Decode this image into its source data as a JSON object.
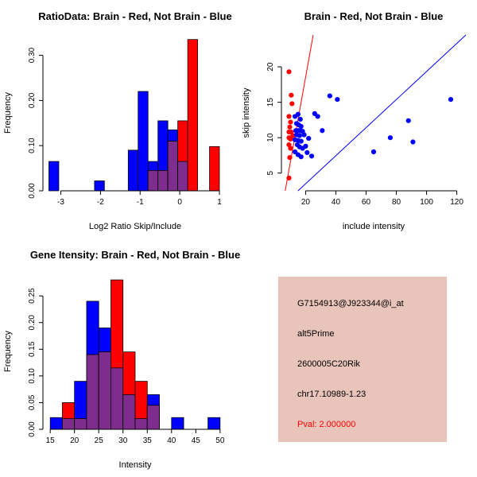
{
  "colors": {
    "red": "#FF0000",
    "blue": "#0000FF",
    "overlap": "#7E2D8E",
    "axis": "#000000"
  },
  "chart_data": [
    {
      "type": "bar",
      "kind": "histogram",
      "title": "RatioData: Brain - Red, Not Brain - Blue",
      "xlabel": "Log2 Ratio Skip/Include",
      "ylabel": "Frequency",
      "legend": {
        "brain": "Red",
        "not_brain": "Blue"
      },
      "xlim": [
        -3.45,
        1.2
      ],
      "ylim": [
        0,
        0.345
      ],
      "xticks": [
        -3,
        -2,
        -1,
        0,
        1
      ],
      "xtick_labels": [
        "-3",
        "-2",
        "-1",
        "0",
        "1"
      ],
      "yticks": [
        0,
        0.1,
        0.2,
        0.3
      ],
      "ytick_labels": [
        "0.00",
        "0.10",
        "0.20",
        "0.30"
      ],
      "bins": [
        {
          "x0": -3.3,
          "x1": -3.05,
          "not_brain": 0.065,
          "brain": 0
        },
        {
          "x0": -2.15,
          "x1": -1.9,
          "not_brain": 0.022,
          "brain": 0
        },
        {
          "x0": -1.3,
          "x1": -1.05,
          "not_brain": 0.09,
          "brain": 0
        },
        {
          "x0": -1.05,
          "x1": -0.8,
          "not_brain": 0.22,
          "brain": 0
        },
        {
          "x0": -0.8,
          "x1": -0.55,
          "not_brain": 0.065,
          "brain": 0.045
        },
        {
          "x0": -0.55,
          "x1": -0.3,
          "not_brain": 0.155,
          "brain": 0.045
        },
        {
          "x0": -0.3,
          "x1": -0.05,
          "not_brain": 0.135,
          "brain": 0.11
        },
        {
          "x0": -0.05,
          "x1": 0.2,
          "not_brain": 0.065,
          "brain": 0.155
        },
        {
          "x0": 0.2,
          "x1": 0.45,
          "not_brain": 0,
          "brain": 0.335
        },
        {
          "x0": 0.75,
          "x1": 1.0,
          "not_brain": 0,
          "brain": 0.098
        }
      ]
    },
    {
      "type": "scatter",
      "title": "Brain - Red, Not Brain - Blue",
      "xlabel": "include intensity",
      "ylabel": "skip intensity",
      "xlim": [
        4,
        126
      ],
      "ylim": [
        2.5,
        24.5
      ],
      "xticks": [
        20,
        40,
        60,
        80,
        100,
        120
      ],
      "yticks": [
        5,
        10,
        15,
        20
      ],
      "series": [
        {
          "name": "brain",
          "color": "#FF0000",
          "points": [
            [
              9,
              19.3
            ],
            [
              10.5,
              16
            ],
            [
              11,
              14.8
            ],
            [
              9,
              13
            ],
            [
              10,
              12.2
            ],
            [
              9.5,
              11.5
            ],
            [
              9,
              10.8
            ],
            [
              10.5,
              10.8
            ],
            [
              9,
              10
            ],
            [
              10,
              9.8
            ],
            [
              11.5,
              10.3
            ],
            [
              9,
              9
            ],
            [
              10,
              8.5
            ],
            [
              9.5,
              7.2
            ],
            [
              9,
              4.3
            ]
          ]
        },
        {
          "name": "not_brain",
          "color": "#0000FF",
          "points": [
            [
              13,
              13
            ],
            [
              15,
              13.3
            ],
            [
              16.5,
              12.6
            ],
            [
              14,
              12
            ],
            [
              15.5,
              11.8
            ],
            [
              17,
              11.6
            ],
            [
              13.5,
              11
            ],
            [
              15,
              11
            ],
            [
              16.5,
              11
            ],
            [
              18,
              10.9
            ],
            [
              14,
              10.4
            ],
            [
              16,
              10.3
            ],
            [
              19,
              10.4
            ],
            [
              13,
              9.7
            ],
            [
              15,
              9.6
            ],
            [
              17,
              9.5
            ],
            [
              14.5,
              9
            ],
            [
              16,
              8.7
            ],
            [
              18,
              8.5
            ],
            [
              13,
              8
            ],
            [
              15,
              7.6
            ],
            [
              17,
              7.3
            ],
            [
              20,
              8.8
            ],
            [
              22,
              9.9
            ],
            [
              21,
              7.9
            ],
            [
              24,
              7.4
            ],
            [
              26,
              13.4
            ],
            [
              28,
              13
            ],
            [
              36,
              15.9
            ],
            [
              41,
              15.4
            ],
            [
              31,
              11
            ],
            [
              65,
              8
            ],
            [
              76,
              10
            ],
            [
              88,
              12.4
            ],
            [
              91,
              9.4
            ],
            [
              116,
              15.4
            ]
          ]
        }
      ],
      "lines": [
        {
          "name": "brain-fit-line",
          "color": "#FF0000",
          "from": [
            6.5,
            2.5
          ],
          "to": [
            25,
            24.5
          ]
        },
        {
          "name": "not-brain-fit-line",
          "color": "#0000FF",
          "from": [
            15,
            2.5
          ],
          "to": [
            126,
            24.5
          ]
        }
      ]
    },
    {
      "type": "bar",
      "kind": "histogram",
      "title": "Gene Itensity: Brain - Red, Not Brain - Blue",
      "xlabel": "Intensity",
      "ylabel": "Frequency",
      "legend": {
        "brain": "Red",
        "not_brain": "Blue"
      },
      "xlim": [
        13.5,
        51.5
      ],
      "ylim": [
        0,
        0.292
      ],
      "xticks": [
        15,
        20,
        25,
        30,
        35,
        40,
        45,
        50
      ],
      "xtick_labels": [
        "15",
        "20",
        "25",
        "30",
        "35",
        "40",
        "45",
        "50"
      ],
      "yticks": [
        0,
        0.05,
        0.1,
        0.15,
        0.2,
        0.25
      ],
      "ytick_labels": [
        "0.00",
        "0.05",
        "0.10",
        "0.15",
        "0.20",
        "0.25"
      ],
      "bins": [
        {
          "x0": 15.0,
          "x1": 17.5,
          "not_brain": 0.022,
          "brain": 0
        },
        {
          "x0": 17.5,
          "x1": 20.0,
          "not_brain": 0.02,
          "brain": 0.05
        },
        {
          "x0": 20.0,
          "x1": 22.5,
          "not_brain": 0.09,
          "brain": 0.02
        },
        {
          "x0": 22.5,
          "x1": 25.0,
          "not_brain": 0.24,
          "brain": 0.14
        },
        {
          "x0": 25.0,
          "x1": 27.5,
          "not_brain": 0.19,
          "brain": 0.145
        },
        {
          "x0": 27.5,
          "x1": 30.0,
          "not_brain": 0.115,
          "brain": 0.28
        },
        {
          "x0": 30.0,
          "x1": 32.5,
          "not_brain": 0.065,
          "brain": 0.145
        },
        {
          "x0": 32.5,
          "x1": 35.0,
          "not_brain": 0.02,
          "brain": 0.09
        },
        {
          "x0": 35.0,
          "x1": 37.5,
          "not_brain": 0.065,
          "brain": 0.045
        },
        {
          "x0": 40.0,
          "x1": 42.5,
          "not_brain": 0.022,
          "brain": 0
        },
        {
          "x0": 47.5,
          "x1": 50.0,
          "not_brain": 0.022,
          "brain": 0
        }
      ]
    }
  ],
  "info_panel": {
    "background": "#E9C4BB",
    "lines": [
      {
        "label": "probe-id",
        "text": "G7154913@J923344@i_at",
        "color": "#000000"
      },
      {
        "label": "splice-type",
        "text": "alt5Prime",
        "color": "#000000"
      },
      {
        "label": "gene-name",
        "text": "2600005C20Rik",
        "color": "#000000"
      },
      {
        "label": "location",
        "text": "chr17.10989-1.23",
        "color": "#000000"
      },
      {
        "label": "pval",
        "text": "Pval: 2.000000",
        "color": "#FF0000"
      }
    ]
  }
}
